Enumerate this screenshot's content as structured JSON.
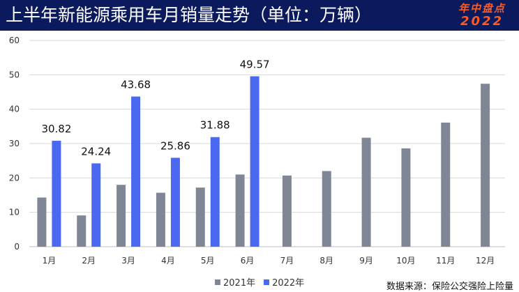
{
  "header": {
    "title": "上半年新能源乘用车月销量走势（单位：万辆）",
    "badge_line1": "年中盘点",
    "badge_line2": "2022"
  },
  "source": "数据来源：保险公交强险上险量",
  "colors": {
    "header_bg": "#0b1a5c",
    "badge": "#ff5a1f",
    "series_2021": "#7f8796",
    "series_2022": "#4a69f0",
    "grid": "#d9d9d9"
  },
  "chart_data": {
    "type": "bar",
    "categories": [
      "1月",
      "2月",
      "3月",
      "4月",
      "5月",
      "6月",
      "7月",
      "8月",
      "9月",
      "10月",
      "11月",
      "12月"
    ],
    "series": [
      {
        "name": "2021年",
        "values": [
          14.3,
          9.1,
          18.0,
          15.7,
          17.2,
          21.0,
          20.7,
          22.0,
          31.7,
          28.6,
          36.1,
          47.4
        ]
      },
      {
        "name": "2022年",
        "values": [
          30.82,
          24.24,
          43.68,
          25.86,
          31.88,
          49.57,
          null,
          null,
          null,
          null,
          null,
          null
        ]
      }
    ],
    "data_labels": {
      "2022年": [
        "30.82",
        "24.24",
        "43.68",
        "25.86",
        "31.88",
        "49.57"
      ]
    },
    "ylim": [
      0,
      60
    ],
    "yticks": [
      0,
      10,
      20,
      30,
      40,
      50,
      60
    ],
    "grid": true,
    "legend": "bottom"
  }
}
